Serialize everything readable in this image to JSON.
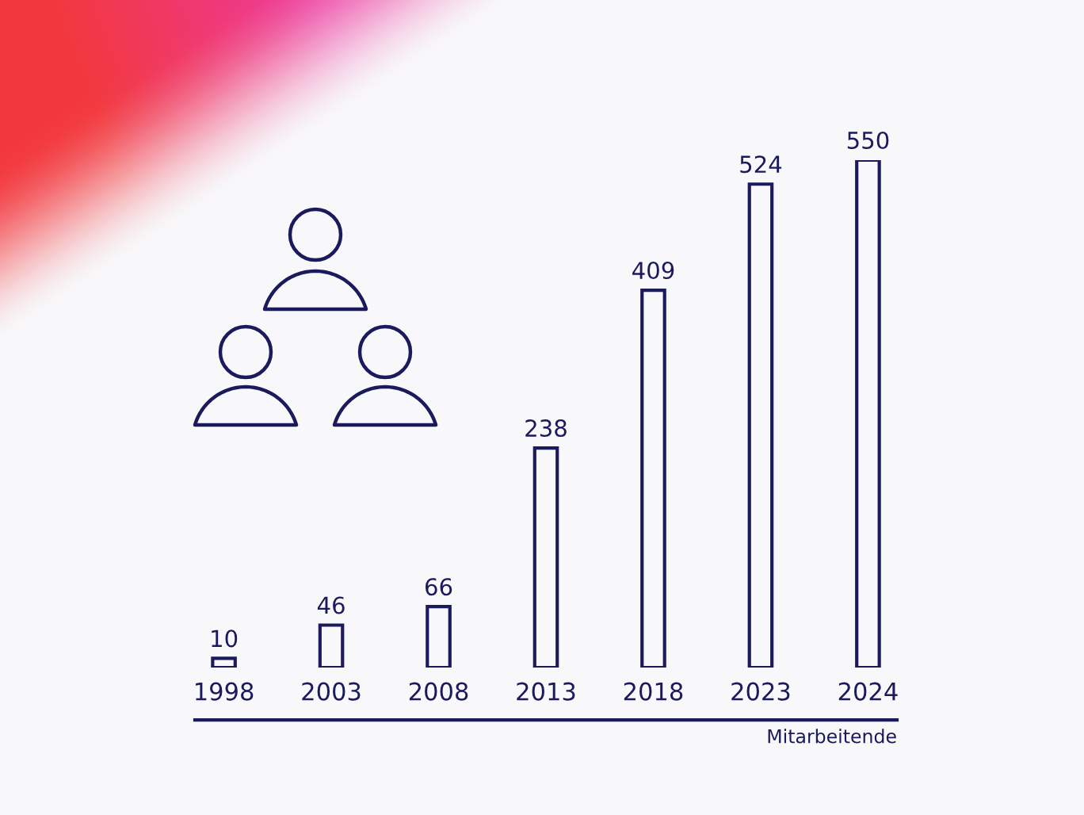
{
  "chart_data": {
    "type": "bar",
    "categories": [
      "1998",
      "2003",
      "2008",
      "2013",
      "2018",
      "2023",
      "2024"
    ],
    "values": [
      10,
      46,
      66,
      238,
      409,
      524,
      550
    ],
    "color": "#1a1a5c",
    "xlabel": "Mitarbeitende",
    "data_labels": true,
    "tick_labels": "x"
  }
}
